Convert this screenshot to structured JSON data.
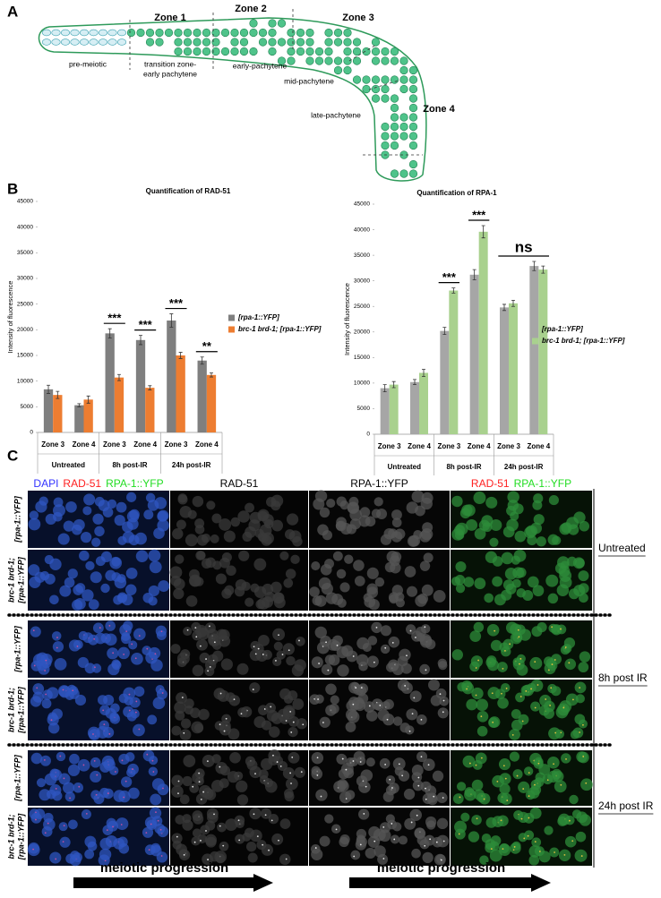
{
  "panel_labels": [
    "A",
    "B",
    "C"
  ],
  "diagram": {
    "zones": [
      "Zone 1",
      "Zone 2",
      "Zone 3",
      "Zone 4"
    ],
    "stages": [
      "pre-meiotic",
      [
        "transition zone-",
        "early pachytene"
      ],
      "early-pachytene",
      "mid-pachytene",
      "late-pachytene"
    ]
  },
  "chart_data": [
    {
      "type": "bar",
      "title": "Quantification of RAD-51",
      "y_label": "Intensity of fluorescence",
      "categories": [
        "Zone 3",
        "Zone 4",
        "Zone 3",
        "Zone 4",
        "Zone 3",
        "Zone 4"
      ],
      "groups": [
        {
          "label": "Untreated",
          "span": [
            0,
            1
          ]
        },
        {
          "label": "8h post-IR",
          "span": [
            2,
            3
          ]
        },
        {
          "label": "24h post-IR",
          "span": [
            4,
            5
          ]
        }
      ],
      "series": [
        {
          "name": "[rpa-1::YFP]",
          "color": "#7f7f7f",
          "values": [
            8400,
            5300,
            19300,
            18000,
            21800,
            14000
          ],
          "errors": [
            800,
            300,
            900,
            900,
            1300,
            700
          ]
        },
        {
          "name": "brc-1 brd-1; [rpa-1::YFP]",
          "color": "#ed7d31",
          "values": [
            7300,
            6400,
            10700,
            8700,
            15000,
            11200
          ],
          "errors": [
            700,
            700,
            600,
            400,
            600,
            400
          ]
        }
      ],
      "ylim": [
        0,
        45000
      ],
      "yticks": [
        0,
        5000,
        10000,
        15000,
        20000,
        25000,
        30000,
        35000,
        40000,
        45000
      ],
      "annotations": [
        {
          "text": "***",
          "span": [
            2,
            2
          ]
        },
        {
          "text": "***",
          "span": [
            3,
            3
          ]
        },
        {
          "text": "***",
          "span": [
            4,
            4
          ]
        },
        {
          "text": "**",
          "span": [
            5,
            5
          ]
        }
      ],
      "legend": "right"
    },
    {
      "type": "bar",
      "title": "Quantification of RPA-1",
      "y_label": "Intensity of fluorescence",
      "categories": [
        "Zone 3",
        "Zone 4",
        "Zone 3",
        "Zone 4",
        "Zone 3",
        "Zone 4"
      ],
      "groups": [
        {
          "label": "Untreated",
          "span": [
            0,
            1
          ]
        },
        {
          "label": "8h post-IR",
          "span": [
            2,
            3
          ]
        },
        {
          "label": "24h post-IR",
          "span": [
            4,
            5
          ]
        }
      ],
      "series": [
        {
          "name": "[rpa-1::YFP]",
          "color": "#a6a6a6",
          "values": [
            9000,
            10200,
            20200,
            31200,
            24800,
            32900
          ],
          "errors": [
            700,
            500,
            700,
            1000,
            600,
            900
          ]
        },
        {
          "name": "brc-1 brd-1; [rpa-1::YFP]",
          "color": "#a9d18e",
          "values": [
            9700,
            12000,
            28100,
            39600,
            25600,
            32200
          ],
          "errors": [
            600,
            700,
            500,
            1200,
            600,
            700
          ]
        }
      ],
      "ylim": [
        0,
        45000
      ],
      "yticks": [
        0,
        5000,
        10000,
        15000,
        20000,
        25000,
        30000,
        35000,
        40000,
        45000
      ],
      "annotations": [
        {
          "text": "***",
          "span": [
            2,
            2
          ]
        },
        {
          "text": "***",
          "span": [
            3,
            3
          ]
        },
        {
          "text": "ns",
          "span": [
            4,
            5
          ]
        }
      ],
      "legend": "right"
    }
  ],
  "micrographs": {
    "headers": [
      [
        {
          "text": "DAPI",
          "color": "#3333ff"
        },
        {
          "text": "RAD-51",
          "color": "#ff2020"
        },
        {
          "text": "RPA-1::YFP",
          "color": "#22dd22"
        }
      ],
      [
        {
          "text": "RAD-51",
          "color": "#000000"
        }
      ],
      [
        {
          "text": "RPA-1::YFP",
          "color": "#000000"
        }
      ],
      [
        {
          "text": "RAD-51",
          "color": "#ff2020"
        },
        {
          "text": "RPA-1::YFP",
          "color": "#22dd22"
        }
      ]
    ],
    "genotypes": [
      [
        "[rpa-1::YFP]"
      ],
      [
        "brc-1 brd-1;",
        "[rpa-1::YFP]"
      ]
    ],
    "conditions": [
      "Untreated",
      "8h post IR",
      "24h post IR"
    ],
    "progression": [
      "meiotic progression",
      "meiotic progression"
    ]
  }
}
